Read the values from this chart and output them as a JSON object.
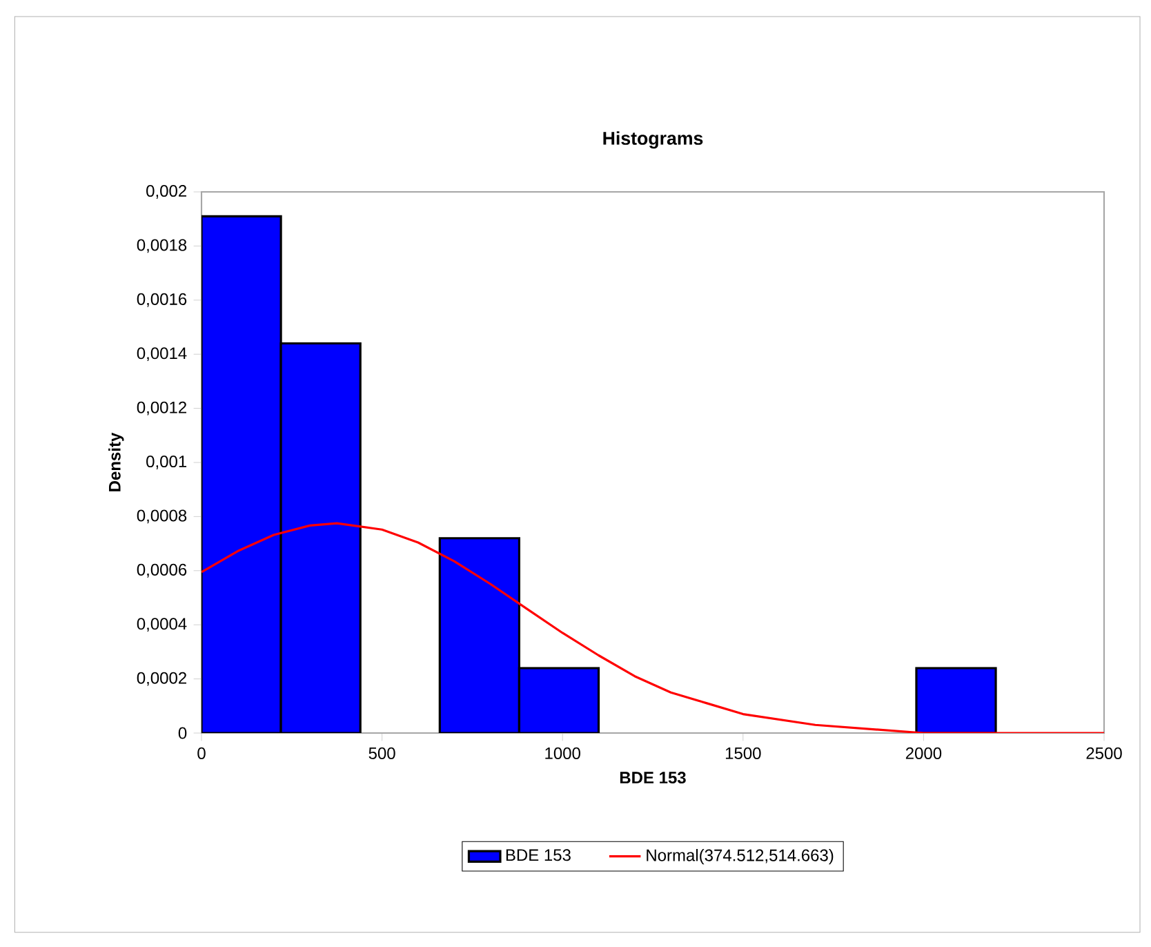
{
  "chart_data": {
    "type": "histogram",
    "title": "Histograms",
    "xlabel": "BDE 153",
    "ylabel": "Density",
    "series": [
      {
        "name": "BDE 153",
        "color": "#0000ff",
        "bins": [
          0,
          220,
          440,
          660,
          880,
          1100,
          1320,
          1540,
          1760,
          1980,
          2200
        ],
        "values": [
          0.00191,
          0.00144,
          0,
          0.00072,
          0.00024,
          0,
          0,
          0,
          0,
          0.00024
        ]
      },
      {
        "name": "Normal(374.512,514.663)",
        "type": "line",
        "color": "#ff0000",
        "x": [
          0,
          100,
          200,
          300,
          375,
          500,
          600,
          700,
          800,
          900,
          1000,
          1100,
          1200,
          1300,
          1400,
          1500,
          1600,
          1700,
          1800,
          1900,
          2000,
          2200,
          2500
        ],
        "values": [
          0.000595,
          0.000672,
          0.000732,
          0.000767,
          0.000775,
          0.000752,
          0.000704,
          0.000635,
          0.000551,
          0.00046,
          0.00037,
          0.000287,
          0.00021,
          0.00015,
          0.00011,
          7e-05,
          5e-05,
          3e-05,
          2e-05,
          1e-05,
          0,
          0,
          0
        ]
      }
    ],
    "xlim": [
      0,
      2500
    ],
    "ylim": [
      0,
      0.002
    ],
    "xticks": [
      0,
      500,
      1000,
      1500,
      2000,
      2500
    ],
    "yticks": [
      0,
      {
        "value": 0.0002,
        "label": "0,0002"
      },
      {
        "value": 0.0004,
        "label": "0,0004"
      },
      {
        "value": 0.0006,
        "label": "0,0006"
      },
      {
        "value": 0.0008,
        "label": "0,0008"
      },
      {
        "value": 0.001,
        "label": "0,001"
      },
      {
        "value": 0.0012,
        "label": "0,0012"
      },
      {
        "value": 0.0014,
        "label": "0,0014"
      },
      {
        "value": 0.0016,
        "label": "0,0016"
      },
      {
        "value": 0.0018,
        "label": "0,0018"
      },
      {
        "value": 0.002,
        "label": "0,002"
      }
    ],
    "legend": "bottom",
    "marker": "none",
    "line_style": "solid",
    "grid": false
  }
}
